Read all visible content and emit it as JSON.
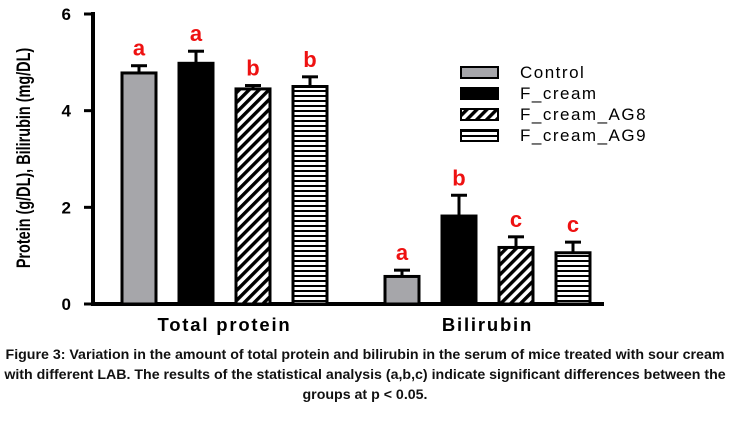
{
  "chart_data": {
    "type": "bar",
    "ylabel": "Protein (g/DL), Bilirubin (mg/DL)",
    "xlabel": "",
    "ylim": [
      0,
      6
    ],
    "yticks": [
      "0",
      "2",
      "4",
      "6"
    ],
    "categories": [
      "Total protein",
      "Bilirubin"
    ],
    "series": [
      {
        "name": "Control",
        "values": [
          4.78,
          0.57
        ],
        "errors": [
          0.15,
          0.13
        ],
        "fill": "#a6a6aa"
      },
      {
        "name": "F_cream",
        "values": [
          4.98,
          1.82
        ],
        "errors": [
          0.25,
          0.43
        ],
        "fill": "#000000"
      },
      {
        "name": "F_cream_AG8",
        "values": [
          4.45,
          1.17
        ],
        "errors": [
          0.07,
          0.22
        ],
        "fill": "diagonal-stripes"
      },
      {
        "name": "F_cream_AG9",
        "values": [
          4.5,
          1.06
        ],
        "errors": [
          0.2,
          0.22
        ],
        "fill": "horizontal-stripes"
      }
    ],
    "significance": [
      [
        "a",
        "a",
        "b",
        "b"
      ],
      [
        "a",
        "b",
        "c",
        "c"
      ]
    ],
    "significance_color": "#ee1111",
    "legend_position": "right",
    "grid": false
  },
  "caption": "Figure 3: Variation in the amount of total protein and bilirubin in the serum of mice treated with sour cream with different LAB. The results of the statistical analysis (a,b,c) indicate significant differences between the groups at p < 0.05."
}
